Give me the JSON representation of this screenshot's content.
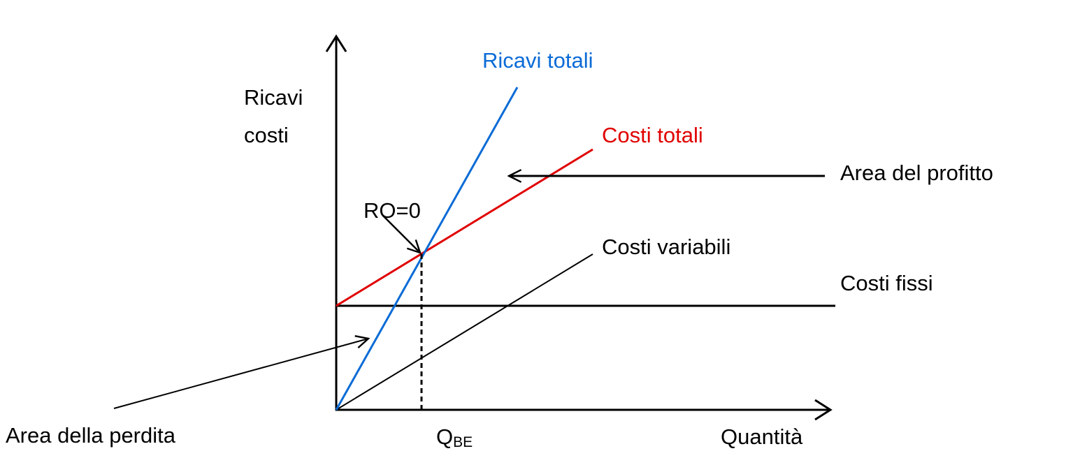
{
  "diagram": {
    "y_axis_label": [
      "Ricavi",
      "costi"
    ],
    "x_axis_label": "Quantità",
    "lines": {
      "revenue": "Ricavi totali",
      "total_costs": "Costi totali",
      "variable_costs": "Costi variabili",
      "fixed_costs": "Costi fissi"
    },
    "annotations": {
      "profit_area": "Area del profitto",
      "loss_area": "Area della perdita",
      "break_even": "RO=0",
      "break_even_quantity": {
        "main": "Q",
        "sub": "BE"
      }
    }
  }
}
